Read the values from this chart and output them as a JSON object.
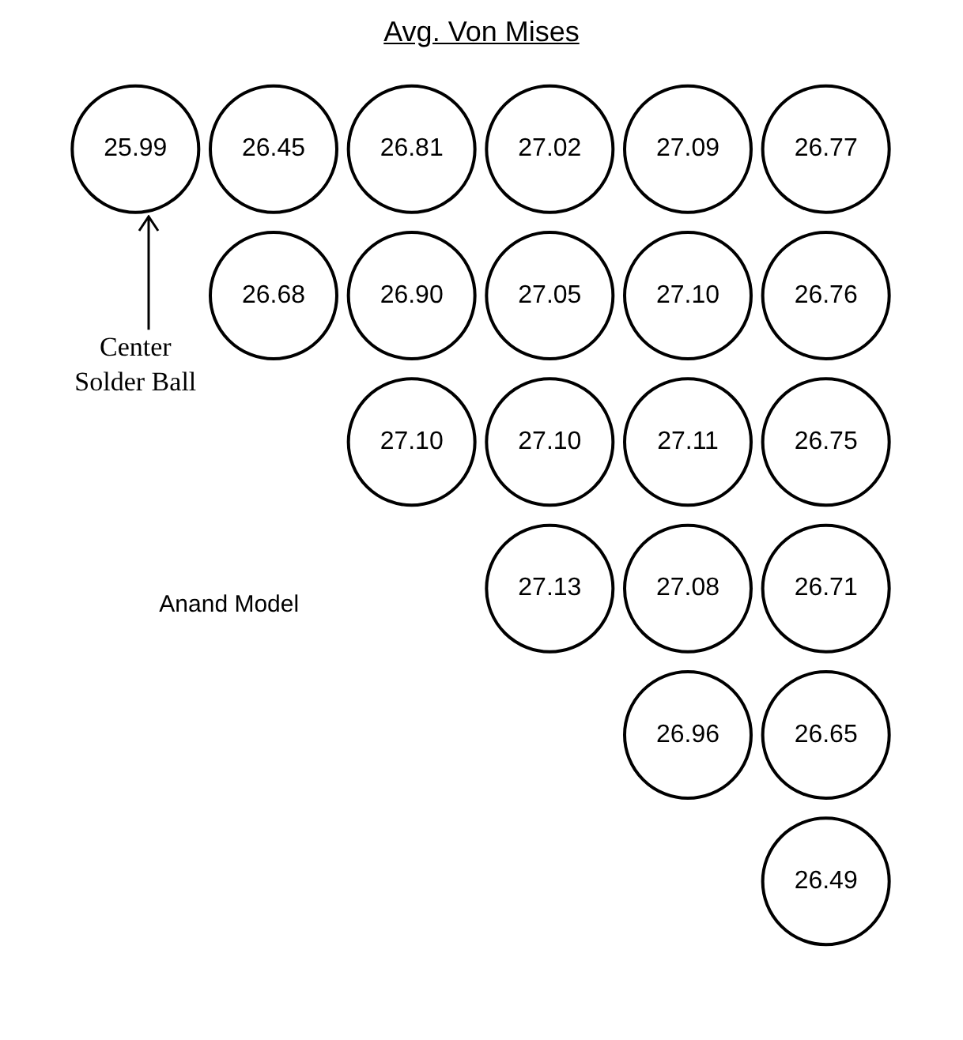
{
  "chart_data": {
    "type": "other",
    "title": "Avg. Von Mises",
    "categories": [
      null,
      null,
      null,
      null,
      null,
      null,
      null,
      null,
      null,
      null,
      null,
      null,
      null,
      null,
      null,
      null,
      null,
      null,
      null,
      null,
      null
    ],
    "values": [
      25.99,
      26.45,
      26.81,
      27.02,
      27.09,
      26.77,
      26.68,
      26.9,
      27.05,
      27.1,
      26.76,
      27.1,
      27.1,
      27.11,
      26.75,
      27.13,
      27.08,
      26.71,
      26.96,
      26.65,
      26.49
    ],
    "value_labels": [
      "25.99",
      "26.45",
      "26.81",
      "27.02",
      "27.09",
      "26.77",
      "26.68",
      "26.90",
      "27.05",
      "27.10",
      "26.76",
      "27.10",
      "27.10",
      "27.11",
      "26.75",
      "27.13",
      "27.08",
      "26.71",
      "26.96",
      "26.65",
      "26.49"
    ],
    "annotations": [
      "Center\nSolder Ball",
      "Anand Model"
    ]
  }
}
